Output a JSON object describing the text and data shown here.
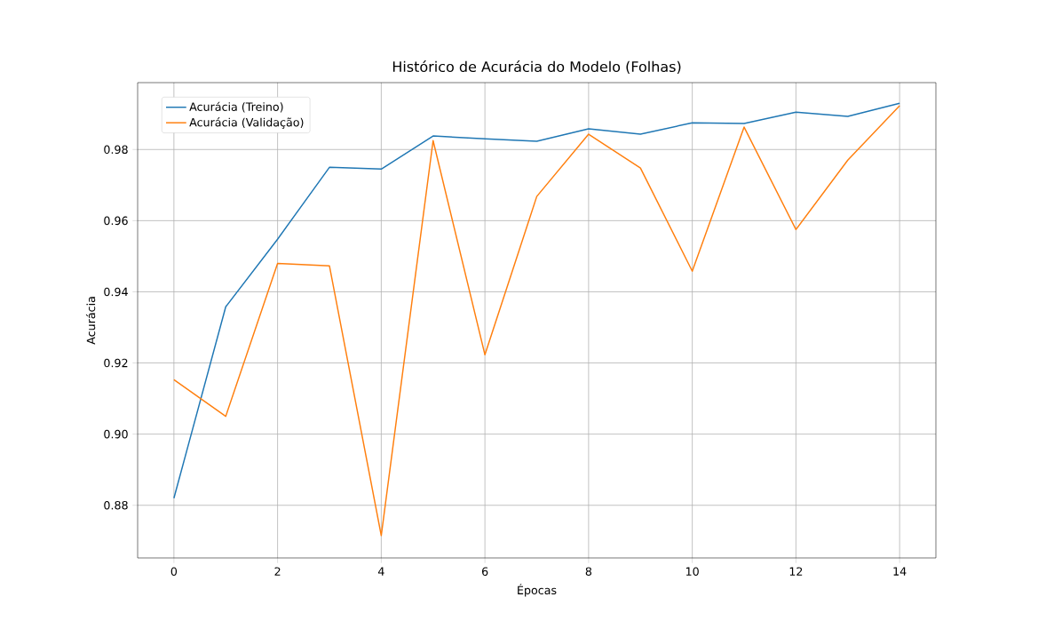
{
  "chart_data": {
    "type": "line",
    "title": "Histórico de Acurácia do Modelo (Folhas)",
    "xlabel": "Épocas",
    "ylabel": "Acurácia",
    "x": [
      0,
      1,
      2,
      3,
      4,
      5,
      6,
      7,
      8,
      9,
      10,
      11,
      12,
      13,
      14
    ],
    "series": [
      {
        "name": "Acurácia (Treino)",
        "color": "#1f77b4",
        "values": [
          0.882,
          0.9358,
          0.9548,
          0.975,
          0.9745,
          0.9838,
          0.983,
          0.9823,
          0.9858,
          0.9843,
          0.9875,
          0.9873,
          0.9905,
          0.9893,
          0.993
        ]
      },
      {
        "name": "Acurácia (Validação)",
        "color": "#ff7f0e",
        "values": [
          0.9153,
          0.905,
          0.948,
          0.9473,
          0.8715,
          0.9825,
          0.9223,
          0.9668,
          0.9843,
          0.9748,
          0.9458,
          0.9863,
          0.9575,
          0.977,
          0.9923
        ]
      }
    ],
    "xlim": [
      -0.7,
      14.7
    ],
    "ylim": [
      0.8652,
      0.9988
    ],
    "xticks": [
      0,
      2,
      4,
      6,
      8,
      10,
      12,
      14
    ],
    "yticks": [
      0.88,
      {
        "value": 0.9,
        "label": "0.90"
      },
      0.92,
      0.94,
      0.96,
      0.98
    ],
    "grid": true,
    "legend": "top left",
    "marker": "none",
    "line_style": "solid"
  }
}
